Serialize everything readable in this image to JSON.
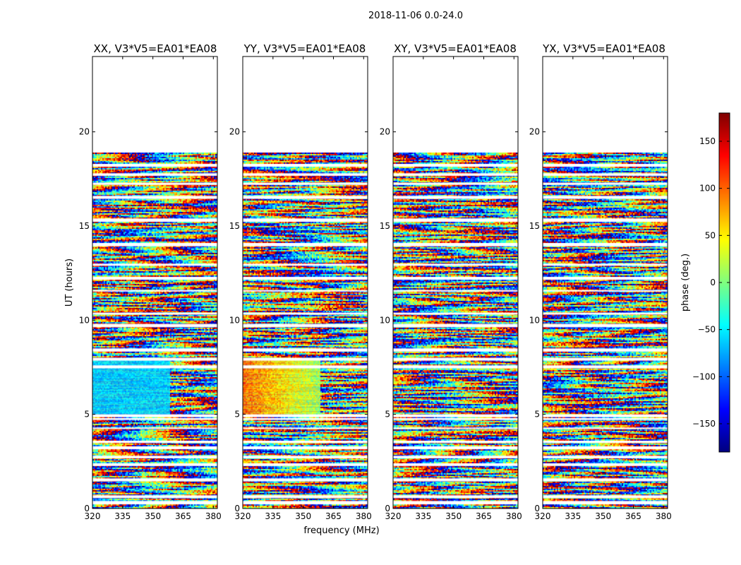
{
  "chart_data": {
    "type": "heatmap",
    "suptitle": "2018-11-06 0.0-24.0",
    "xlabel": "frequency (MHz)",
    "ylabel": "UT (hours)",
    "xlim": [
      320,
      382
    ],
    "ylim": [
      0,
      24
    ],
    "xticks": [
      320,
      335,
      350,
      365,
      380
    ],
    "yticks": [
      0,
      5,
      10,
      15,
      20
    ],
    "data_extent_hours": [
      0,
      18.9
    ],
    "colorbar": {
      "label": "phase (deg.)",
      "range": [
        -180,
        180
      ],
      "ticks": [
        -150,
        -100,
        -50,
        0,
        50,
        100,
        150
      ],
      "tick_labels": [
        "−150",
        "−100",
        "−50",
        "0",
        "50",
        "100",
        "150"
      ],
      "colormap": "jet",
      "colors": [
        "#00007f",
        "#0000ff",
        "#007fff",
        "#00ffff",
        "#7fff7f",
        "#ffff00",
        "#ff7f00",
        "#ff0000",
        "#7f0000"
      ]
    },
    "panels": [
      {
        "title": "XX, V3*V5=EA01*EA08"
      },
      {
        "title": "YY, V3*V5=EA01*EA08"
      },
      {
        "title": "XY, V3*V5=EA01*EA08"
      },
      {
        "title": "YX, V3*V5=EA01*EA08"
      }
    ]
  }
}
